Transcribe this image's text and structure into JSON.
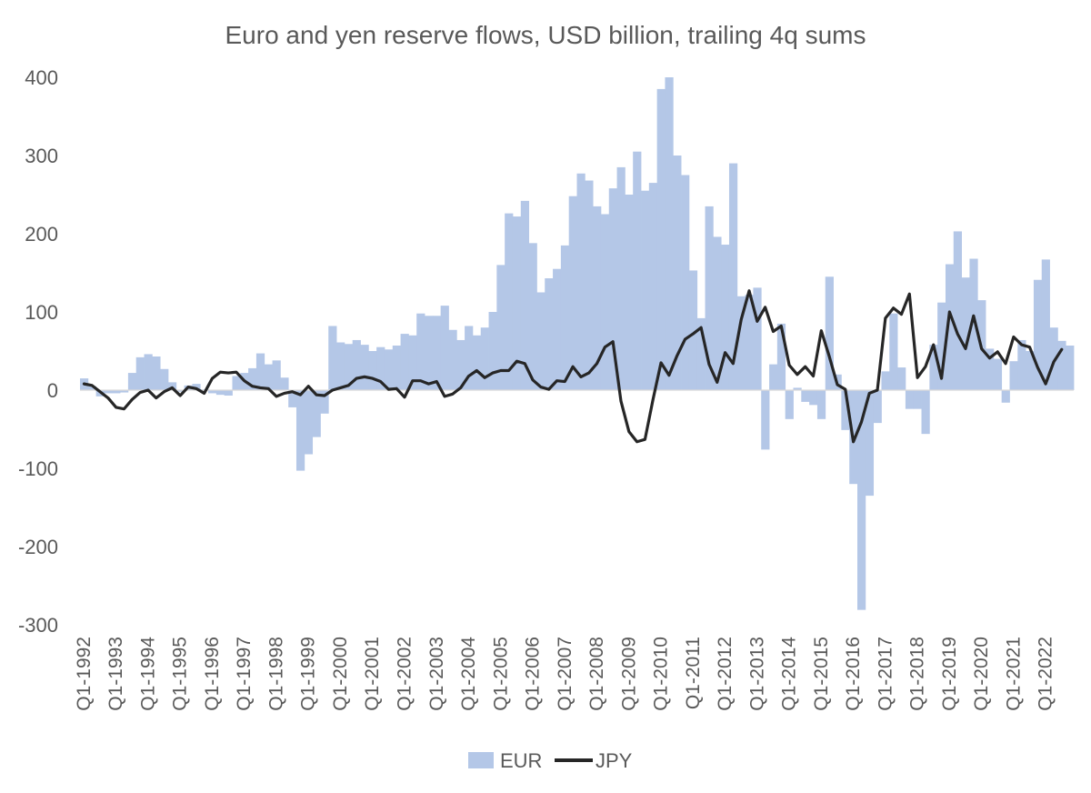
{
  "chart_data": {
    "type": "bar",
    "title": "Euro and yen reserve flows, USD billion, trailing 4q sums",
    "xlabel": "",
    "ylabel": "",
    "ylim": [
      -300,
      400
    ],
    "yticks": [
      400,
      300,
      200,
      100,
      0,
      -100,
      -200,
      -300
    ],
    "grid": false,
    "legend_position": "bottom",
    "x_tick_labels": [
      "Q1-1992",
      "Q1-1993",
      "Q1-1994",
      "Q1-1995",
      "Q1-1996",
      "Q1-1997",
      "Q1-1998",
      "Q1-1999",
      "Q1-2000",
      "Q1-2001",
      "Q1-2002",
      "Q1-2003",
      "Q1-2004",
      "Q1-2005",
      "Q1-2006",
      "Q1-2007",
      "Q1-2008",
      "Q1-2009",
      "Q1-2010",
      "Q1-2011",
      "Q1-2012",
      "Q1-2013",
      "Q1-2014",
      "Q1-2015",
      "Q1-2016",
      "Q1-2017",
      "Q1-2018",
      "Q1-2019",
      "Q1-2020",
      "Q1-2021",
      "Q1-2022"
    ],
    "series": [
      {
        "name": "EUR",
        "type": "bar",
        "color": "#b4c7e7",
        "values": [
          15,
          5,
          -8,
          -4,
          -4,
          -3,
          22,
          42,
          46,
          43,
          27,
          10,
          -2,
          6,
          8,
          1,
          -4,
          -6,
          -7,
          18,
          22,
          28,
          47,
          33,
          38,
          16,
          -22,
          -103,
          -82,
          -60,
          -30,
          82,
          61,
          59,
          64,
          58,
          50,
          55,
          52,
          57,
          72,
          70,
          98,
          95,
          95,
          108,
          77,
          64,
          82,
          70,
          80,
          100,
          160,
          226,
          222,
          242,
          188,
          125,
          143,
          155,
          185,
          248,
          277,
          268,
          235,
          225,
          258,
          285,
          250,
          305,
          255,
          265,
          385,
          400,
          300,
          275,
          153,
          92,
          235,
          196,
          186,
          290,
          120,
          122,
          131,
          -76,
          33,
          85,
          -37,
          3,
          -15,
          -19,
          -37,
          145,
          20,
          -51,
          -120,
          -281,
          -135,
          -42,
          24,
          98,
          29,
          -24,
          -24,
          -56,
          58,
          112,
          161,
          203,
          144,
          168,
          115,
          53,
          40,
          -16,
          37,
          64,
          50,
          141,
          167,
          80,
          63,
          57
        ]
      },
      {
        "name": "JPY",
        "type": "line",
        "color": "#262626",
        "values": [
          8,
          6,
          -2,
          -10,
          -22,
          -24,
          -12,
          -3,
          0,
          -10,
          -2,
          3,
          -7,
          4,
          2,
          -4,
          15,
          23,
          22,
          23,
          12,
          5,
          3,
          2,
          -8,
          -4,
          -2,
          -6,
          5,
          -6,
          -7,
          0,
          3,
          6,
          15,
          17,
          15,
          11,
          1,
          2,
          -9,
          12,
          12,
          8,
          11,
          -8,
          -5,
          3,
          18,
          25,
          16,
          22,
          25,
          25,
          37,
          34,
          13,
          4,
          1,
          12,
          11,
          30,
          17,
          22,
          34,
          55,
          62,
          -14,
          -53,
          -66,
          -63,
          -12,
          35,
          19,
          44,
          65,
          72,
          80,
          33,
          10,
          48,
          34,
          90,
          127,
          88,
          106,
          75,
          82,
          32,
          20,
          30,
          18,
          76,
          43,
          7,
          1,
          -66,
          -41,
          -4,
          0,
          92,
          105,
          97,
          123,
          16,
          30,
          58,
          15,
          100,
          72,
          53,
          95,
          53,
          41,
          49,
          34,
          68,
          58,
          55,
          29,
          8,
          36,
          52
        ]
      }
    ]
  }
}
